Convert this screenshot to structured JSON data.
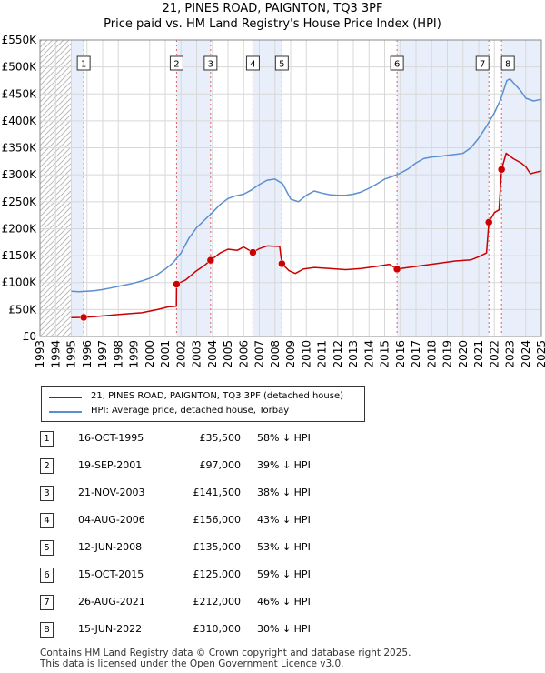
{
  "title_line1": "21, PINES ROAD, PAIGNTON, TQ3 3PF",
  "title_line2": "Price paid vs. HM Land Registry's House Price Index (HPI)",
  "chart_data": {
    "type": "line",
    "ylim": [
      0,
      550000
    ],
    "xlim": [
      1993,
      2025
    ],
    "y_ticks": [
      0,
      50000,
      100000,
      150000,
      200000,
      250000,
      300000,
      350000,
      400000,
      450000,
      500000,
      550000
    ],
    "y_tick_labels": [
      "£0",
      "£50K",
      "£100K",
      "£150K",
      "£200K",
      "£250K",
      "£300K",
      "£350K",
      "£400K",
      "£450K",
      "£500K",
      "£550K"
    ],
    "x_ticks": [
      1993,
      1994,
      1995,
      1996,
      1997,
      1998,
      1999,
      2000,
      2001,
      2002,
      2003,
      2004,
      2005,
      2006,
      2007,
      2008,
      2009,
      2010,
      2011,
      2012,
      2013,
      2014,
      2015,
      2016,
      2017,
      2018,
      2019,
      2020,
      2021,
      2022,
      2023,
      2024,
      2025
    ],
    "hatch_ranges": [
      [
        1993,
        1995.0
      ],
      [
        2025.0,
        2025.0
      ]
    ],
    "grid": true,
    "colors": {
      "property": "#cc0000",
      "hpi": "#5a8fd0",
      "shade": "#e8eefa",
      "marker_line": "#e06060"
    },
    "series": [
      {
        "name": "21, PINES ROAD, PAIGNTON, TQ3 3PF (detached house)",
        "color": "#cc0000",
        "points": [
          [
            1995.0,
            35000
          ],
          [
            1995.79,
            35500
          ],
          [
            1996.5,
            37000
          ],
          [
            1997.5,
            39500
          ],
          [
            1998.5,
            42000
          ],
          [
            1999.5,
            44000
          ],
          [
            2000.5,
            50000
          ],
          [
            2001.2,
            55000
          ],
          [
            2001.71,
            56000
          ],
          [
            2001.72,
            97000
          ],
          [
            2002.3,
            105000
          ],
          [
            2002.9,
            120000
          ],
          [
            2003.5,
            132000
          ],
          [
            2003.89,
            141500
          ],
          [
            2004.5,
            155000
          ],
          [
            2005.0,
            162000
          ],
          [
            2005.6,
            160000
          ],
          [
            2006.0,
            166000
          ],
          [
            2006.59,
            156000
          ],
          [
            2007.0,
            163000
          ],
          [
            2007.5,
            168000
          ],
          [
            2008.3,
            167000
          ],
          [
            2008.44,
            135000
          ],
          [
            2008.9,
            122000
          ],
          [
            2009.3,
            117000
          ],
          [
            2009.8,
            125000
          ],
          [
            2010.5,
            128000
          ],
          [
            2011.5,
            126000
          ],
          [
            2012.5,
            124000
          ],
          [
            2013.5,
            126000
          ],
          [
            2014.5,
            130000
          ],
          [
            2015.3,
            134000
          ],
          [
            2015.79,
            125000
          ],
          [
            2016.5,
            128000
          ],
          [
            2017.5,
            132000
          ],
          [
            2018.5,
            136000
          ],
          [
            2019.5,
            140000
          ],
          [
            2020.5,
            142000
          ],
          [
            2021.0,
            148000
          ],
          [
            2021.5,
            155000
          ],
          [
            2021.65,
            212000
          ],
          [
            2022.0,
            230000
          ],
          [
            2022.3,
            235000
          ],
          [
            2022.46,
            310000
          ],
          [
            2022.75,
            340000
          ],
          [
            2023.2,
            330000
          ],
          [
            2023.7,
            322000
          ],
          [
            2024.0,
            315000
          ],
          [
            2024.3,
            302000
          ],
          [
            2024.7,
            305000
          ],
          [
            2025.0,
            307000
          ]
        ]
      },
      {
        "name": "HPI: Average price, detached house, Torbay",
        "color": "#5a8fd0",
        "points": [
          [
            1995.0,
            84000
          ],
          [
            1995.5,
            83000
          ],
          [
            1996.0,
            84000
          ],
          [
            1996.5,
            85000
          ],
          [
            1997.0,
            87000
          ],
          [
            1997.5,
            90000
          ],
          [
            1998.0,
            93000
          ],
          [
            1998.5,
            96000
          ],
          [
            1999.0,
            99000
          ],
          [
            1999.5,
            103000
          ],
          [
            2000.0,
            108000
          ],
          [
            2000.5,
            115000
          ],
          [
            2001.0,
            125000
          ],
          [
            2001.5,
            137000
          ],
          [
            2002.0,
            155000
          ],
          [
            2002.5,
            182000
          ],
          [
            2003.0,
            202000
          ],
          [
            2003.5,
            216000
          ],
          [
            2004.0,
            230000
          ],
          [
            2004.5,
            245000
          ],
          [
            2005.0,
            256000
          ],
          [
            2005.5,
            261000
          ],
          [
            2006.0,
            264000
          ],
          [
            2006.5,
            272000
          ],
          [
            2007.0,
            282000
          ],
          [
            2007.5,
            290000
          ],
          [
            2008.0,
            292000
          ],
          [
            2008.5,
            283000
          ],
          [
            2009.0,
            255000
          ],
          [
            2009.5,
            250000
          ],
          [
            2010.0,
            262000
          ],
          [
            2010.5,
            270000
          ],
          [
            2011.0,
            266000
          ],
          [
            2011.5,
            263000
          ],
          [
            2012.0,
            262000
          ],
          [
            2012.5,
            262000
          ],
          [
            2013.0,
            264000
          ],
          [
            2013.5,
            268000
          ],
          [
            2014.0,
            275000
          ],
          [
            2014.5,
            283000
          ],
          [
            2015.0,
            292000
          ],
          [
            2015.5,
            297000
          ],
          [
            2016.0,
            303000
          ],
          [
            2016.5,
            311000
          ],
          [
            2017.0,
            322000
          ],
          [
            2017.5,
            330000
          ],
          [
            2018.0,
            333000
          ],
          [
            2018.5,
            334000
          ],
          [
            2019.0,
            336000
          ],
          [
            2019.5,
            338000
          ],
          [
            2020.0,
            340000
          ],
          [
            2020.5,
            350000
          ],
          [
            2021.0,
            368000
          ],
          [
            2021.5,
            390000
          ],
          [
            2022.0,
            415000
          ],
          [
            2022.4,
            440000
          ],
          [
            2022.8,
            475000
          ],
          [
            2023.0,
            478000
          ],
          [
            2023.3,
            468000
          ],
          [
            2023.7,
            455000
          ],
          [
            2024.0,
            442000
          ],
          [
            2024.5,
            437000
          ],
          [
            2025.0,
            440000
          ]
        ]
      }
    ],
    "sales": [
      {
        "label": "1",
        "x": 1995.79,
        "y": 35500
      },
      {
        "label": "2",
        "x": 2001.72,
        "y": 97000
      },
      {
        "label": "3",
        "x": 2003.89,
        "y": 141500
      },
      {
        "label": "4",
        "x": 2006.59,
        "y": 156000
      },
      {
        "label": "5",
        "x": 2008.44,
        "y": 135000
      },
      {
        "label": "6",
        "x": 2015.79,
        "y": 125000
      },
      {
        "label": "7",
        "x": 2021.65,
        "y": 212000
      },
      {
        "label": "8",
        "x": 2022.46,
        "y": 310000
      }
    ]
  },
  "legend": {
    "property": "21, PINES ROAD, PAIGNTON, TQ3 3PF (detached house)",
    "hpi": "HPI: Average price, detached house, Torbay"
  },
  "transactions": [
    {
      "num": "1",
      "date": "16-OCT-1995",
      "price": "£35,500",
      "hpi": "58% ↓ HPI"
    },
    {
      "num": "2",
      "date": "19-SEP-2001",
      "price": "£97,000",
      "hpi": "39% ↓ HPI"
    },
    {
      "num": "3",
      "date": "21-NOV-2003",
      "price": "£141,500",
      "hpi": "38% ↓ HPI"
    },
    {
      "num": "4",
      "date": "04-AUG-2006",
      "price": "£156,000",
      "hpi": "43% ↓ HPI"
    },
    {
      "num": "5",
      "date": "12-JUN-2008",
      "price": "£135,000",
      "hpi": "53% ↓ HPI"
    },
    {
      "num": "6",
      "date": "15-OCT-2015",
      "price": "£125,000",
      "hpi": "59% ↓ HPI"
    },
    {
      "num": "7",
      "date": "26-AUG-2021",
      "price": "£212,000",
      "hpi": "46% ↓ HPI"
    },
    {
      "num": "8",
      "date": "15-JUN-2022",
      "price": "£310,000",
      "hpi": "30% ↓ HPI"
    }
  ],
  "footer_line1": "Contains HM Land Registry data © Crown copyright and database right 2025.",
  "footer_line2": "This data is licensed under the Open Government Licence v3.0."
}
